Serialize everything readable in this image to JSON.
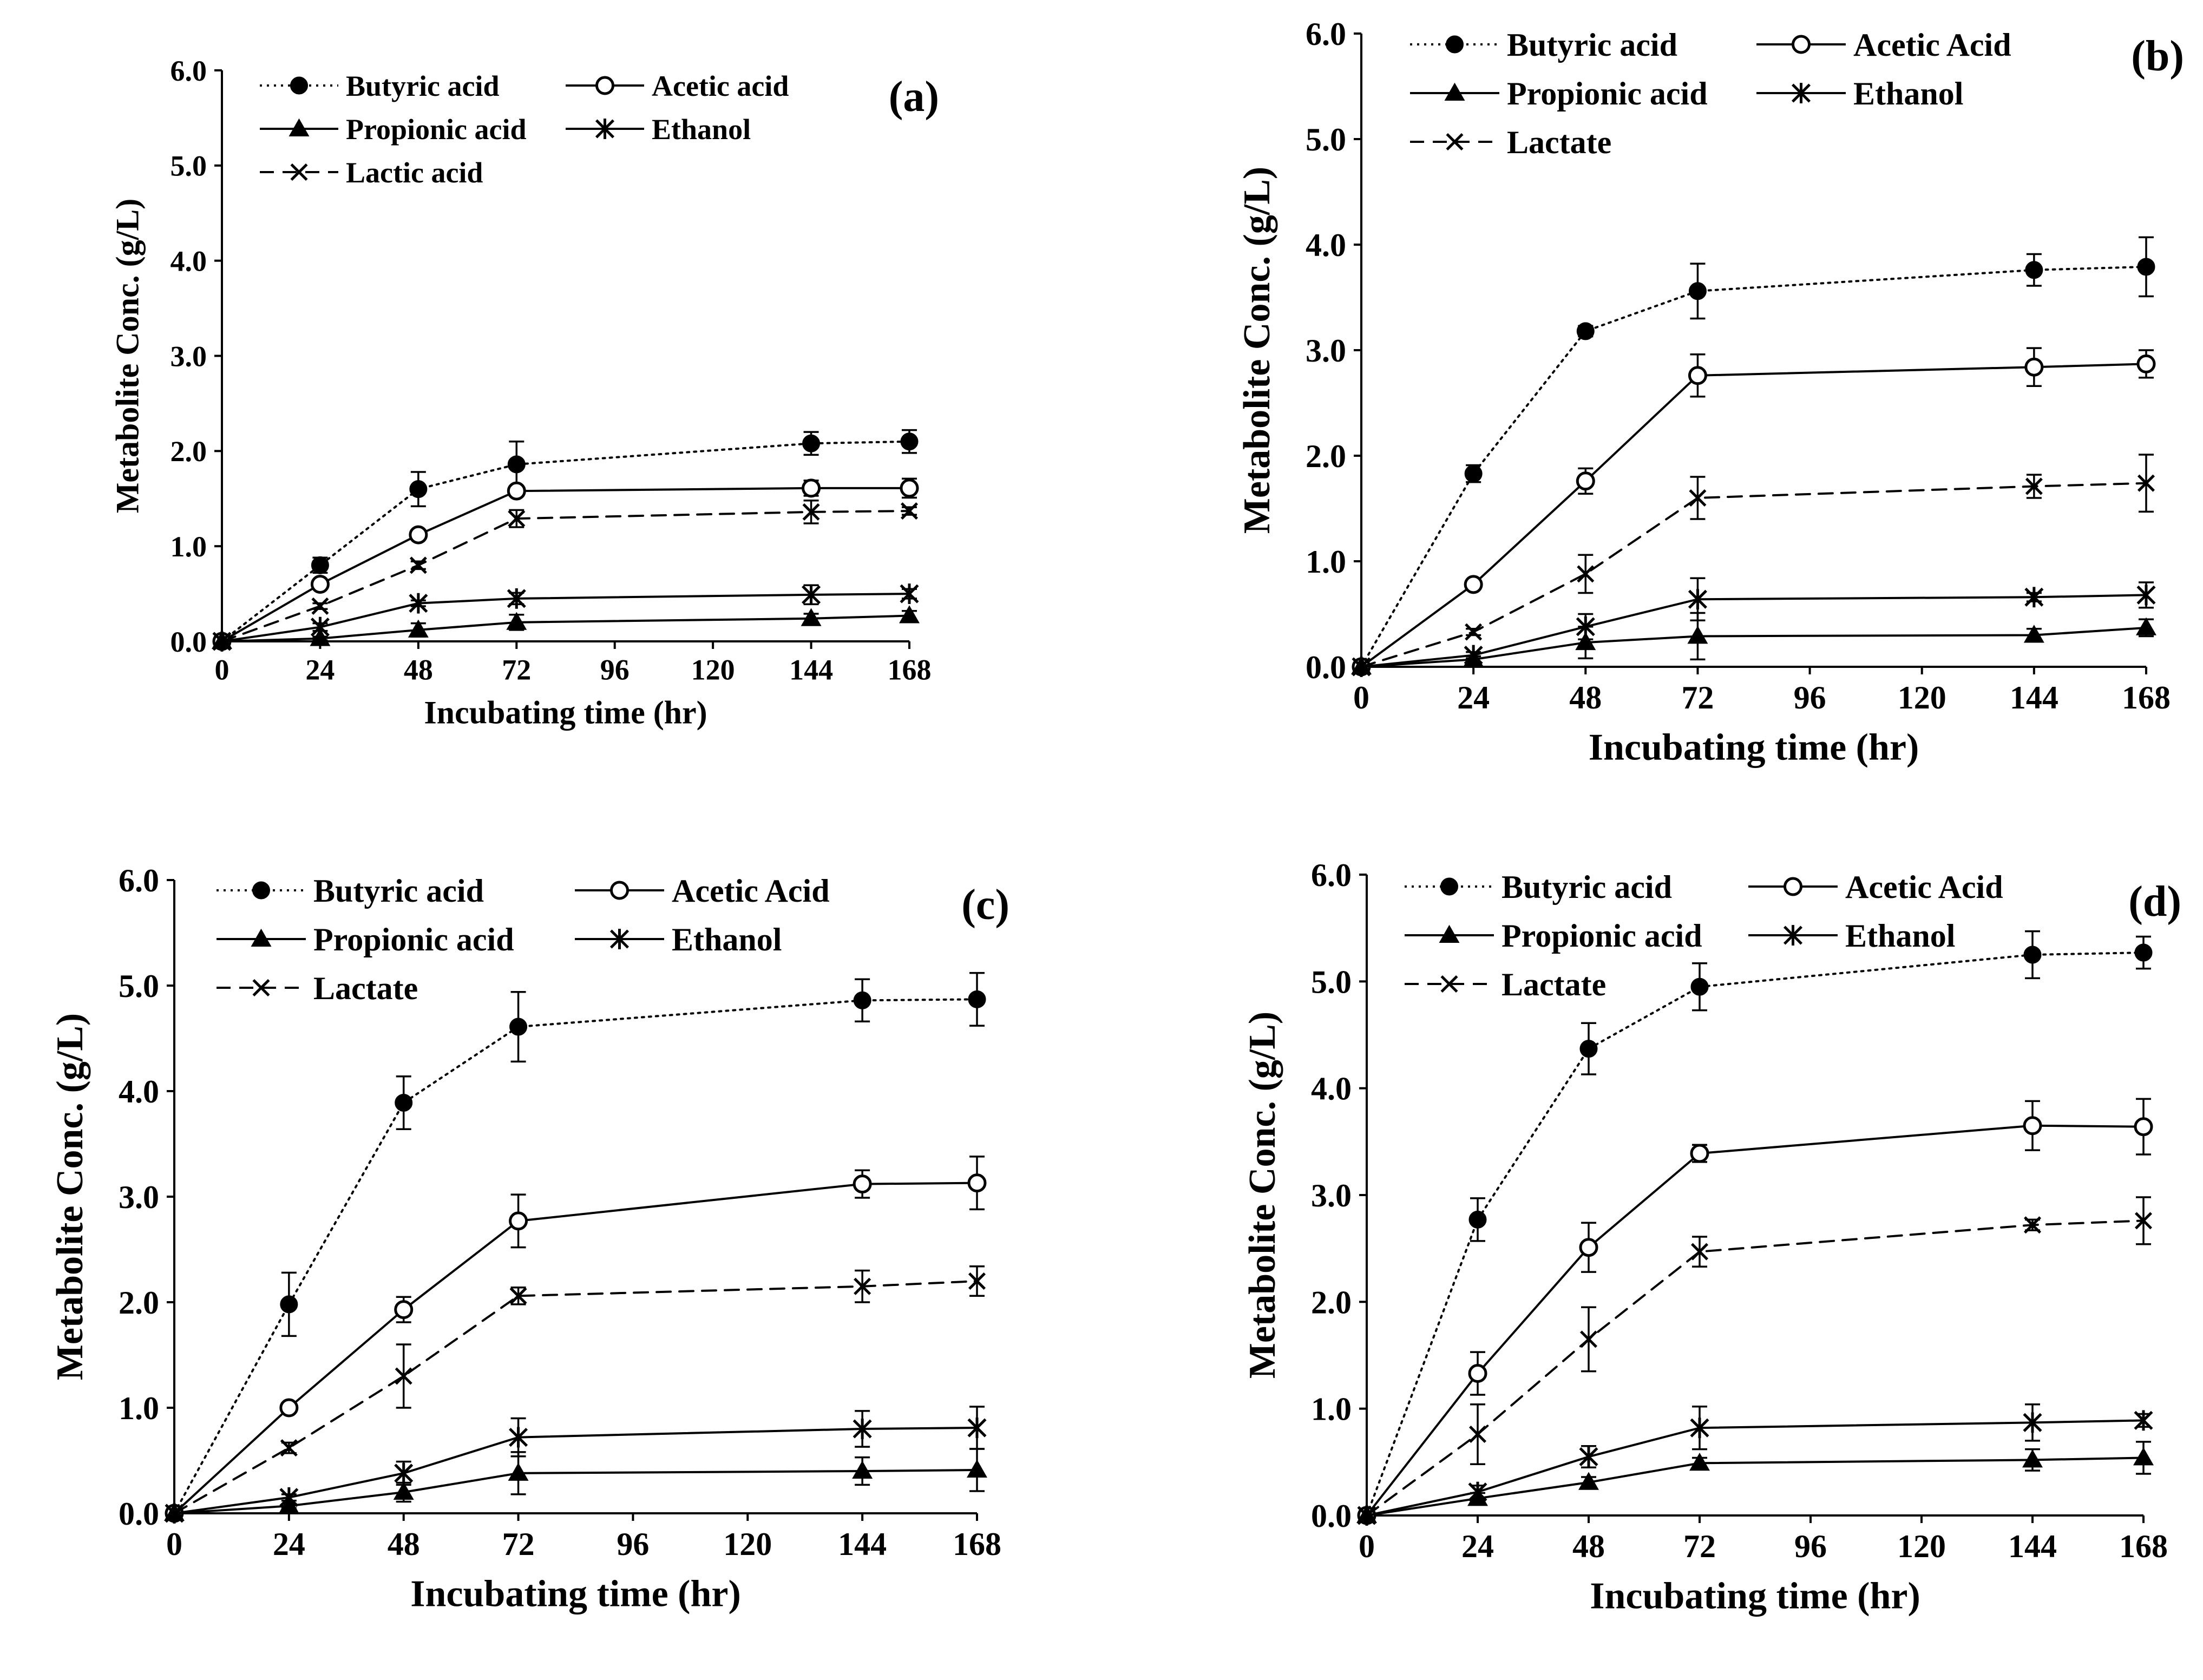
{
  "figure": {
    "marker_legend": {
      "butyric": "filled-circle-marker",
      "acetic": "open-circle-marker",
      "propionic": "filled-triangle-marker",
      "ethanol": "asterisk-marker",
      "lactic": "x-marker"
    },
    "line_styles": {
      "butyric": "dotted",
      "acetic": "solid",
      "propionic": "solid",
      "ethanol": "solid",
      "lactic": "dashed"
    },
    "color": "#000000"
  },
  "chart_data": [
    {
      "type": "line",
      "panel_label": "(a)",
      "xlabel": "Incubating time (hr)",
      "ylabel": "Metabolite Conc. (g/L)",
      "x": [
        0,
        24,
        48,
        72,
        144,
        168
      ],
      "xticks": [
        "0",
        "24",
        "48",
        "72",
        "96",
        "120",
        "144",
        "168"
      ],
      "yticks": [
        "0.0",
        "1.0",
        "2.0",
        "3.0",
        "4.0",
        "5.0",
        "6.0"
      ],
      "xlim": [
        0,
        168
      ],
      "ylim": [
        0,
        6
      ],
      "grid": false,
      "legend_position": "top",
      "series": [
        {
          "key": "butyric",
          "name": "Butyric acid",
          "values": [
            0,
            0.8,
            1.6,
            1.86,
            2.08,
            2.1
          ],
          "errors": [
            0,
            0.08,
            0.18,
            0.24,
            0.12,
            0.12
          ]
        },
        {
          "key": "acetic",
          "name": "Acetic acid",
          "values": [
            0,
            0.6,
            1.12,
            1.58,
            1.61,
            1.61
          ],
          "errors": [
            0,
            0.05,
            0.05,
            0.05,
            0.08,
            0.1
          ]
        },
        {
          "key": "propionic",
          "name": "Propionic acid",
          "values": [
            0,
            0.03,
            0.12,
            0.2,
            0.24,
            0.27
          ],
          "errors": [
            0,
            0.02,
            0.07,
            0.08,
            0.05,
            0.05
          ]
        },
        {
          "key": "ethanol",
          "name": "Ethanol",
          "values": [
            0,
            0.15,
            0.4,
            0.45,
            0.49,
            0.5
          ],
          "errors": [
            0,
            0.04,
            0.03,
            0.06,
            0.1,
            0.05
          ]
        },
        {
          "key": "lactic",
          "name": "Lactic acid",
          "values": [
            0,
            0.37,
            0.8,
            1.29,
            1.36,
            1.37
          ],
          "errors": [
            0,
            0.03,
            0.04,
            0.09,
            0.12,
            0.04
          ]
        }
      ]
    },
    {
      "type": "line",
      "panel_label": "(b)",
      "xlabel": "Incubating time (hr)",
      "ylabel": "Metabolite Conc. (g/L)",
      "x": [
        0,
        24,
        48,
        72,
        144,
        168
      ],
      "xticks": [
        "0",
        "24",
        "48",
        "72",
        "96",
        "120",
        "144",
        "168"
      ],
      "yticks": [
        "0.0",
        "1.0",
        "2.0",
        "3.0",
        "4.0",
        "5.0",
        "6.0"
      ],
      "xlim": [
        0,
        168
      ],
      "ylim": [
        0,
        6
      ],
      "grid": false,
      "legend_position": "top",
      "series": [
        {
          "key": "butyric",
          "name": "Butyric acid",
          "values": [
            0,
            1.83,
            3.18,
            3.56,
            3.76,
            3.79
          ],
          "errors": [
            0,
            0.08,
            0.05,
            0.26,
            0.15,
            0.28
          ]
        },
        {
          "key": "acetic",
          "name": "Acetic Acid",
          "values": [
            0,
            0.78,
            1.76,
            2.76,
            2.84,
            2.87
          ],
          "errors": [
            0,
            0.04,
            0.12,
            0.2,
            0.18,
            0.13
          ]
        },
        {
          "key": "propionic",
          "name": "Propionic acid",
          "values": [
            0,
            0.07,
            0.23,
            0.29,
            0.3,
            0.37
          ],
          "errors": [
            0,
            0.03,
            0.15,
            0.22,
            0.06,
            0.08
          ]
        },
        {
          "key": "ethanol",
          "name": "Ethanol",
          "values": [
            0,
            0.11,
            0.38,
            0.64,
            0.66,
            0.68
          ],
          "errors": [
            0,
            0.03,
            0.12,
            0.2,
            0.04,
            0.12
          ]
        },
        {
          "key": "lactic",
          "name": "Lactate",
          "values": [
            0,
            0.33,
            0.88,
            1.6,
            1.71,
            1.74
          ],
          "errors": [
            0,
            0.03,
            0.18,
            0.2,
            0.11,
            0.27
          ]
        }
      ]
    },
    {
      "type": "line",
      "panel_label": "(c)",
      "xlabel": "Incubating time (hr)",
      "ylabel": "Metabolite Conc. (g/L)",
      "x": [
        0,
        24,
        48,
        72,
        144,
        168
      ],
      "xticks": [
        "0",
        "24",
        "48",
        "72",
        "96",
        "120",
        "144",
        "168"
      ],
      "yticks": [
        "0.0",
        "1.0",
        "2.0",
        "3.0",
        "4.0",
        "5.0",
        "6.0"
      ],
      "xlim": [
        0,
        168
      ],
      "ylim": [
        0,
        6
      ],
      "grid": false,
      "legend_position": "top",
      "series": [
        {
          "key": "butyric",
          "name": "Butyric acid",
          "values": [
            0,
            1.98,
            3.89,
            4.61,
            4.86,
            4.87
          ],
          "errors": [
            0,
            0.3,
            0.25,
            0.33,
            0.2,
            0.25
          ]
        },
        {
          "key": "acetic",
          "name": "Acetic Acid",
          "values": [
            0,
            1.0,
            1.93,
            2.77,
            3.12,
            3.13
          ],
          "errors": [
            0,
            0.04,
            0.12,
            0.25,
            0.13,
            0.25
          ]
        },
        {
          "key": "propionic",
          "name": "Propionic acid",
          "values": [
            0,
            0.07,
            0.2,
            0.38,
            0.4,
            0.41
          ],
          "errors": [
            0,
            0.02,
            0.09,
            0.2,
            0.13,
            0.2
          ]
        },
        {
          "key": "ethanol",
          "name": "Ethanol",
          "values": [
            0,
            0.15,
            0.38,
            0.72,
            0.8,
            0.81
          ],
          "errors": [
            0,
            0.03,
            0.11,
            0.18,
            0.17,
            0.2
          ]
        },
        {
          "key": "lactic",
          "name": "Lactate",
          "values": [
            0,
            0.62,
            1.3,
            2.06,
            2.15,
            2.2
          ],
          "errors": [
            0,
            0.05,
            0.3,
            0.08,
            0.15,
            0.14
          ]
        }
      ]
    },
    {
      "type": "line",
      "panel_label": "(d)",
      "xlabel": "Incubating time (hr)",
      "ylabel": "Metabolite Conc. (g/L)",
      "x": [
        0,
        24,
        48,
        72,
        144,
        168
      ],
      "xticks": [
        "0",
        "24",
        "48",
        "72",
        "96",
        "120",
        "144",
        "168"
      ],
      "yticks": [
        "0.0",
        "1.0",
        "2.0",
        "3.0",
        "4.0",
        "5.0",
        "6.0"
      ],
      "xlim": [
        0,
        168
      ],
      "ylim": [
        0,
        6
      ],
      "grid": false,
      "legend_position": "top",
      "series": [
        {
          "key": "butyric",
          "name": "Butyric acid",
          "values": [
            0,
            2.77,
            4.37,
            4.95,
            5.25,
            5.27
          ],
          "errors": [
            0,
            0.2,
            0.24,
            0.22,
            0.22,
            0.15
          ]
        },
        {
          "key": "acetic",
          "name": "Acetic Acid",
          "values": [
            0,
            1.33,
            2.51,
            3.39,
            3.65,
            3.64
          ],
          "errors": [
            0,
            0.2,
            0.23,
            0.08,
            0.23,
            0.26
          ]
        },
        {
          "key": "propionic",
          "name": "Propionic acid",
          "values": [
            0,
            0.16,
            0.31,
            0.49,
            0.52,
            0.54
          ],
          "errors": [
            0,
            0.05,
            0.05,
            0.05,
            0.1,
            0.15
          ]
        },
        {
          "key": "ethanol",
          "name": "Ethanol",
          "values": [
            0,
            0.22,
            0.55,
            0.82,
            0.87,
            0.89
          ],
          "errors": [
            0,
            0.06,
            0.1,
            0.2,
            0.17,
            0.06
          ]
        },
        {
          "key": "lactic",
          "name": "Lactate",
          "values": [
            0,
            0.76,
            1.65,
            2.47,
            2.72,
            2.76
          ],
          "errors": [
            0,
            0.28,
            0.3,
            0.14,
            0.05,
            0.22
          ]
        }
      ]
    }
  ]
}
